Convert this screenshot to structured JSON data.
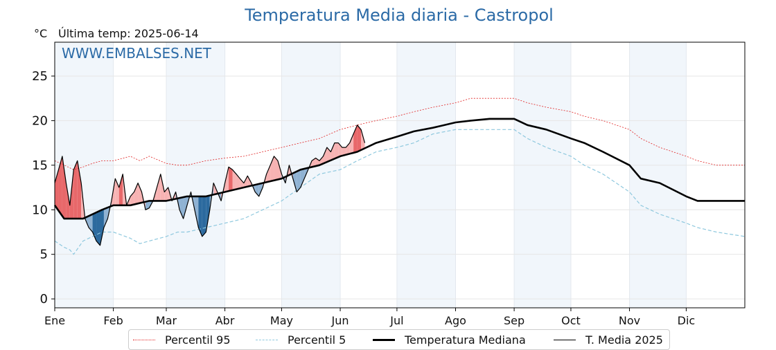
{
  "title": "Temperatura Media diaria - Castropol",
  "unit_label": "°C",
  "last_temp_label": "Última temp: 2025-06-14",
  "watermark": "WWW.EMBALSES.NET",
  "chart_data": {
    "type": "line",
    "title": "Temperatura Media diaria - Castropol",
    "ylabel": "°C",
    "ylim": [
      -1,
      28.8
    ],
    "xlim": [
      0,
      365
    ],
    "yticks": [
      0,
      5,
      10,
      15,
      20,
      25
    ],
    "months": [
      {
        "label": "Ene",
        "start": 0,
        "end": 31,
        "shaded": true
      },
      {
        "label": "Feb",
        "start": 31,
        "end": 59,
        "shaded": false
      },
      {
        "label": "Mar",
        "start": 59,
        "end": 90,
        "shaded": true
      },
      {
        "label": "Abr",
        "start": 90,
        "end": 120,
        "shaded": false
      },
      {
        "label": "May",
        "start": 120,
        "end": 151,
        "shaded": true
      },
      {
        "label": "Jun",
        "start": 151,
        "end": 181,
        "shaded": false
      },
      {
        "label": "Jul",
        "start": 181,
        "end": 212,
        "shaded": true
      },
      {
        "label": "Ago",
        "start": 212,
        "end": 243,
        "shaded": false
      },
      {
        "label": "Sep",
        "start": 243,
        "end": 273,
        "shaded": true
      },
      {
        "label": "Oct",
        "start": 273,
        "end": 304,
        "shaded": false
      },
      {
        "label": "Nov",
        "start": 304,
        "end": 334,
        "shaded": true
      },
      {
        "label": "Dic",
        "start": 334,
        "end": 365,
        "shaded": false
      }
    ],
    "grid": true,
    "legend_position": "bottom",
    "series": [
      {
        "name": "Percentil 95",
        "style": "dotted",
        "color": "#e02020",
        "points": [
          [
            0,
            15.5
          ],
          [
            5,
            15
          ],
          [
            10,
            14.5
          ],
          [
            15,
            14.8
          ],
          [
            20,
            15.2
          ],
          [
            25,
            15.5
          ],
          [
            31,
            15.5
          ],
          [
            40,
            16
          ],
          [
            45,
            15.5
          ],
          [
            50,
            16
          ],
          [
            59,
            15.2
          ],
          [
            65,
            15
          ],
          [
            70,
            15
          ],
          [
            80,
            15.5
          ],
          [
            90,
            15.8
          ],
          [
            100,
            16
          ],
          [
            110,
            16.5
          ],
          [
            120,
            17
          ],
          [
            130,
            17.5
          ],
          [
            140,
            18
          ],
          [
            151,
            19
          ],
          [
            160,
            19.5
          ],
          [
            170,
            20
          ],
          [
            181,
            20.5
          ],
          [
            190,
            21
          ],
          [
            200,
            21.5
          ],
          [
            212,
            22
          ],
          [
            220,
            22.5
          ],
          [
            230,
            22.5
          ],
          [
            243,
            22.5
          ],
          [
            250,
            22
          ],
          [
            260,
            21.5
          ],
          [
            273,
            21
          ],
          [
            280,
            20.5
          ],
          [
            290,
            20
          ],
          [
            304,
            19
          ],
          [
            310,
            18
          ],
          [
            320,
            17
          ],
          [
            334,
            16
          ],
          [
            340,
            15.5
          ],
          [
            350,
            15
          ],
          [
            365,
            15
          ]
        ]
      },
      {
        "name": "Percentil 5",
        "style": "dashed",
        "color": "#8ec8de",
        "points": [
          [
            0,
            6.5
          ],
          [
            5,
            5.8
          ],
          [
            8,
            5.5
          ],
          [
            10,
            5
          ],
          [
            15,
            6.5
          ],
          [
            20,
            7
          ],
          [
            25,
            7.5
          ],
          [
            31,
            7.5
          ],
          [
            40,
            6.8
          ],
          [
            45,
            6.2
          ],
          [
            50,
            6.5
          ],
          [
            59,
            7
          ],
          [
            65,
            7.5
          ],
          [
            70,
            7.5
          ],
          [
            80,
            8
          ],
          [
            90,
            8.5
          ],
          [
            100,
            9
          ],
          [
            110,
            10
          ],
          [
            120,
            11
          ],
          [
            130,
            12.5
          ],
          [
            140,
            14
          ],
          [
            151,
            14.5
          ],
          [
            160,
            15.5
          ],
          [
            170,
            16.5
          ],
          [
            181,
            17
          ],
          [
            190,
            17.5
          ],
          [
            200,
            18.5
          ],
          [
            212,
            19
          ],
          [
            220,
            19
          ],
          [
            230,
            19
          ],
          [
            243,
            19
          ],
          [
            250,
            18
          ],
          [
            260,
            17
          ],
          [
            273,
            16
          ],
          [
            280,
            15
          ],
          [
            290,
            14
          ],
          [
            304,
            12
          ],
          [
            310,
            10.5
          ],
          [
            320,
            9.5
          ],
          [
            334,
            8.5
          ],
          [
            340,
            8
          ],
          [
            350,
            7.5
          ],
          [
            365,
            7
          ]
        ]
      },
      {
        "name": "Temperatura Mediana",
        "style": "solid-thick",
        "color": "#000000",
        "points": [
          [
            0,
            10.5
          ],
          [
            5,
            9
          ],
          [
            10,
            9
          ],
          [
            15,
            9
          ],
          [
            20,
            9.5
          ],
          [
            25,
            10
          ],
          [
            31,
            10.5
          ],
          [
            40,
            10.5
          ],
          [
            50,
            11
          ],
          [
            59,
            11
          ],
          [
            70,
            11.5
          ],
          [
            80,
            11.5
          ],
          [
            90,
            12
          ],
          [
            100,
            12.5
          ],
          [
            110,
            13
          ],
          [
            120,
            13.5
          ],
          [
            130,
            14.5
          ],
          [
            140,
            15
          ],
          [
            151,
            16
          ],
          [
            160,
            16.5
          ],
          [
            170,
            17.5
          ],
          [
            181,
            18.2
          ],
          [
            190,
            18.8
          ],
          [
            200,
            19.2
          ],
          [
            212,
            19.8
          ],
          [
            220,
            20
          ],
          [
            230,
            20.2
          ],
          [
            243,
            20.2
          ],
          [
            250,
            19.5
          ],
          [
            260,
            19
          ],
          [
            273,
            18
          ],
          [
            280,
            17.5
          ],
          [
            290,
            16.5
          ],
          [
            304,
            15
          ],
          [
            310,
            13.5
          ],
          [
            320,
            13
          ],
          [
            334,
            11.5
          ],
          [
            340,
            11
          ],
          [
            350,
            11
          ],
          [
            365,
            11
          ]
        ]
      },
      {
        "name": "T. Media 2025",
        "style": "solid-thin",
        "color": "#000000",
        "points": [
          [
            0,
            13
          ],
          [
            2,
            14.5
          ],
          [
            4,
            16
          ],
          [
            6,
            13
          ],
          [
            8,
            10.5
          ],
          [
            10,
            14.5
          ],
          [
            12,
            15.5
          ],
          [
            14,
            13
          ],
          [
            16,
            9
          ],
          [
            18,
            8
          ],
          [
            20,
            7.5
          ],
          [
            22,
            6.5
          ],
          [
            24,
            6
          ],
          [
            26,
            8
          ],
          [
            28,
            9
          ],
          [
            30,
            11
          ],
          [
            32,
            13.5
          ],
          [
            34,
            12.5
          ],
          [
            36,
            14
          ],
          [
            38,
            10.5
          ],
          [
            40,
            11.5
          ],
          [
            42,
            12
          ],
          [
            44,
            13
          ],
          [
            46,
            12
          ],
          [
            48,
            10
          ],
          [
            50,
            10.2
          ],
          [
            52,
            11
          ],
          [
            54,
            12.5
          ],
          [
            56,
            14
          ],
          [
            58,
            12
          ],
          [
            60,
            12.5
          ],
          [
            62,
            11
          ],
          [
            64,
            12
          ],
          [
            66,
            10
          ],
          [
            68,
            9
          ],
          [
            70,
            10.5
          ],
          [
            72,
            12
          ],
          [
            74,
            10
          ],
          [
            76,
            8
          ],
          [
            78,
            7
          ],
          [
            80,
            7.5
          ],
          [
            82,
            10
          ],
          [
            84,
            13
          ],
          [
            86,
            12
          ],
          [
            88,
            11
          ],
          [
            90,
            13
          ],
          [
            92,
            14.8
          ],
          [
            94,
            14.5
          ],
          [
            96,
            14
          ],
          [
            98,
            13.5
          ],
          [
            100,
            13
          ],
          [
            102,
            13.8
          ],
          [
            104,
            13
          ],
          [
            106,
            12
          ],
          [
            108,
            11.5
          ],
          [
            110,
            12.5
          ],
          [
            112,
            14
          ],
          [
            114,
            15
          ],
          [
            116,
            16
          ],
          [
            118,
            15.5
          ],
          [
            120,
            14
          ],
          [
            122,
            13
          ],
          [
            124,
            15
          ],
          [
            126,
            13.5
          ],
          [
            128,
            12
          ],
          [
            130,
            12.5
          ],
          [
            132,
            13.5
          ],
          [
            134,
            14.5
          ],
          [
            136,
            15.5
          ],
          [
            138,
            15.8
          ],
          [
            140,
            15.5
          ],
          [
            142,
            16
          ],
          [
            144,
            17
          ],
          [
            146,
            16.5
          ],
          [
            148,
            17.5
          ],
          [
            150,
            17.5
          ],
          [
            152,
            17
          ],
          [
            154,
            17
          ],
          [
            156,
            17.5
          ],
          [
            158,
            18.5
          ],
          [
            160,
            19.5
          ],
          [
            162,
            19
          ],
          [
            164,
            17.5
          ]
        ]
      }
    ]
  }
}
